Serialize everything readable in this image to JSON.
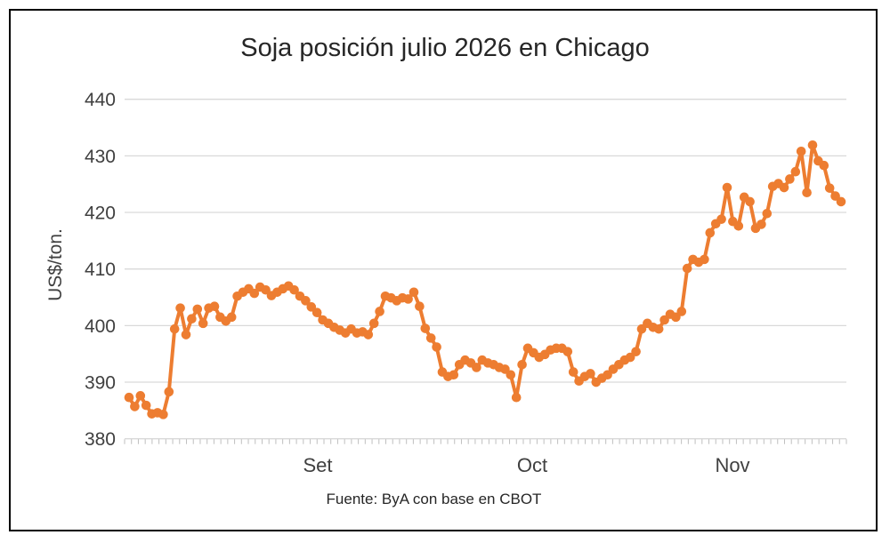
{
  "window": {
    "background": "#ffffff",
    "frame_border_color": "#000000"
  },
  "chart_data": {
    "type": "line",
    "title": "Soja posición julio 2026 en Chicago",
    "ylabel": "US$/ton.",
    "source_note": "Fuente: ByA con base en CBOT",
    "legend": "none",
    "grid": "horizontal",
    "ylim": [
      380,
      440
    ],
    "y_ticks": [
      440,
      430,
      420,
      410,
      400,
      390,
      380
    ],
    "x_tick_labels": [
      "Set",
      "Oct",
      "Nov"
    ],
    "series_color": "#ED7D31",
    "gridline_color": "#D9D9D9",
    "tick_color": "#BFBFBF",
    "axis_text_color": "#404040",
    "series": [
      {
        "name": "Soja posición julio 2026",
        "unit": "US$/ton.",
        "values": [
          387.3,
          385.7,
          387.6,
          385.9,
          384.4,
          384.6,
          384.3,
          388.3,
          399.4,
          403.1,
          398.4,
          401.2,
          402.9,
          400.4,
          403.1,
          403.4,
          401.5,
          400.8,
          401.5,
          405.2,
          405.9,
          406.5,
          405.7,
          406.8,
          406.3,
          405.3,
          405.9,
          406.5,
          407.0,
          406.3,
          405.2,
          404.4,
          403.3,
          402.3,
          401.0,
          400.4,
          399.7,
          399.2,
          398.7,
          399.4,
          398.7,
          398.9,
          398.4,
          400.4,
          402.5,
          405.2,
          404.9,
          404.4,
          404.9,
          404.7,
          405.9,
          403.4,
          399.5,
          397.8,
          396.2,
          391.8,
          391.0,
          391.3,
          393.1,
          393.9,
          393.4,
          392.6,
          393.9,
          393.4,
          393.1,
          392.6,
          392.3,
          391.3,
          387.3,
          393.1,
          396.0,
          395.2,
          394.4,
          394.9,
          395.7,
          396.0,
          396.0,
          395.4,
          391.8,
          390.2,
          391.0,
          391.5,
          390.0,
          390.7,
          391.3,
          392.3,
          393.1,
          393.9,
          394.4,
          395.4,
          399.4,
          400.4,
          399.7,
          399.4,
          401.0,
          402.0,
          401.5,
          402.5,
          410.1,
          411.7,
          411.2,
          411.7,
          416.4,
          418.0,
          418.8,
          424.4,
          418.4,
          417.6,
          422.7,
          421.9,
          417.2,
          417.9,
          419.8,
          424.6,
          425.1,
          424.4,
          425.9,
          427.2,
          430.8,
          423.5,
          431.9,
          429.1,
          428.3,
          424.3,
          422.9,
          421.9
        ]
      }
    ]
  }
}
